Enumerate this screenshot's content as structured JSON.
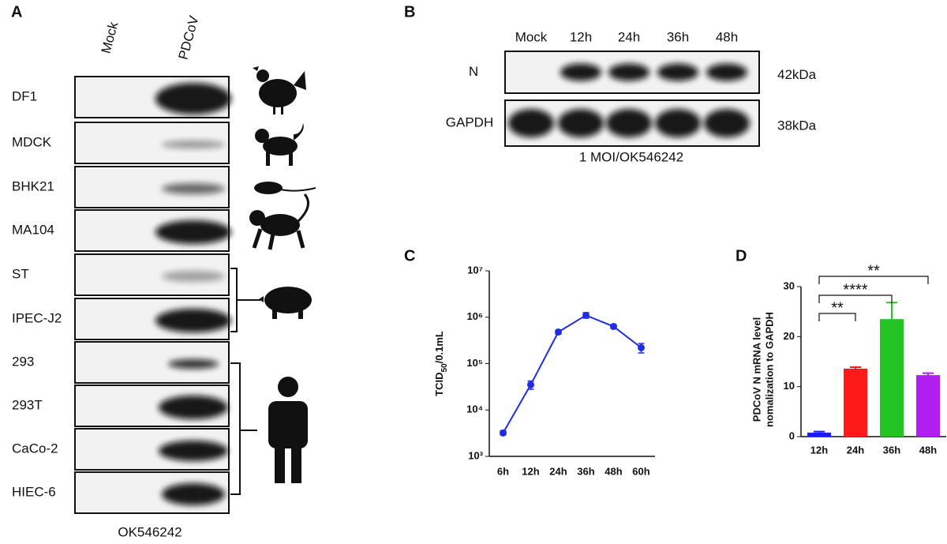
{
  "panel_a": {
    "label": "A",
    "columns": [
      "Mock",
      "PDCoV"
    ],
    "rows": [
      "DF1",
      "MDCK",
      "BHK21",
      "MA104",
      "ST",
      "IPEC-J2",
      "293",
      "293T",
      "CaCo-2",
      "HIEC-6"
    ],
    "footer": "OK546242"
  },
  "panel_b": {
    "label": "B",
    "columns": [
      "Mock",
      "12h",
      "24h",
      "36h",
      "48h"
    ],
    "rows": [
      {
        "name": "N",
        "size": "42kDa"
      },
      {
        "name": "GAPDH",
        "size": "38kDa"
      }
    ],
    "footer": "1 MOI/OK546242"
  },
  "chart_data": [
    {
      "type": "line",
      "label": "C",
      "ylabel": [
        "TCID",
        "50",
        "/0.1mL"
      ],
      "log_y": true,
      "categories": [
        "6h",
        "12h",
        "24h",
        "36h",
        "48h",
        "60h"
      ],
      "series": [
        {
          "color": "#1f2ee0",
          "values": [
            3200,
            35000,
            480000,
            1100000,
            630000,
            220000
          ],
          "errors": [
            300,
            7000,
            50000,
            150000,
            60000,
            50000
          ]
        }
      ],
      "ylim": [
        1000,
        10000000
      ],
      "yticks": [
        {
          "value": 1000,
          "label": "10³"
        },
        {
          "value": 10000,
          "label": "10⁴"
        },
        {
          "value": 100000,
          "label": "10⁵"
        },
        {
          "value": 1000000,
          "label": "10⁶"
        },
        {
          "value": 10000000,
          "label": "10⁷"
        }
      ]
    },
    {
      "type": "bar",
      "label": "D",
      "ylabel": [
        "PDCoV N mRNA level",
        "nomalization to GAPDH"
      ],
      "categories": [
        "12h",
        "24h",
        "36h",
        "48h"
      ],
      "values": [
        0.8,
        13.6,
        23.5,
        12.3
      ],
      "errors": [
        0.2,
        0.3,
        3.3,
        0.4
      ],
      "colors": [
        "#1a1aff",
        "#ff1a1a",
        "#22c322",
        "#b01ff0"
      ],
      "ylim": [
        0,
        30
      ],
      "yticks": [
        0,
        10,
        20,
        30
      ],
      "annotations": [
        "**",
        "****",
        "**"
      ]
    }
  ]
}
